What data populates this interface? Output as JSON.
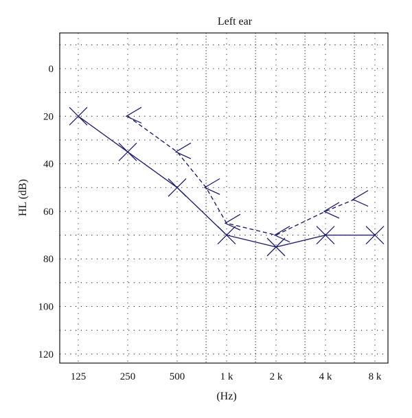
{
  "chart_data": {
    "type": "line",
    "title": "Left ear",
    "xlabel": "(Hz)",
    "ylabel": "HL (dB)",
    "x_categories": [
      "125",
      "250",
      "500",
      "1 k",
      "2 k",
      "4 k",
      "8 k"
    ],
    "y_ticks": [
      0,
      20,
      40,
      60,
      80,
      100,
      120
    ],
    "ylim": [
      -15,
      125
    ],
    "y_inverted": true,
    "grid": true,
    "series": [
      {
        "marker": "X",
        "line_style": "solid",
        "frequencies_hz": [
          125,
          250,
          500,
          1000,
          2000,
          4000,
          8000
        ],
        "values": [
          20,
          35,
          50,
          70,
          75,
          70,
          70
        ]
      },
      {
        "marker": "<",
        "line_style": "dashed",
        "frequencies_hz": [
          250,
          500,
          750,
          1000,
          2000,
          4000,
          6000
        ],
        "values": [
          20,
          35,
          50,
          65,
          70,
          60,
          55
        ]
      }
    ],
    "color": "#1f1f6e"
  }
}
